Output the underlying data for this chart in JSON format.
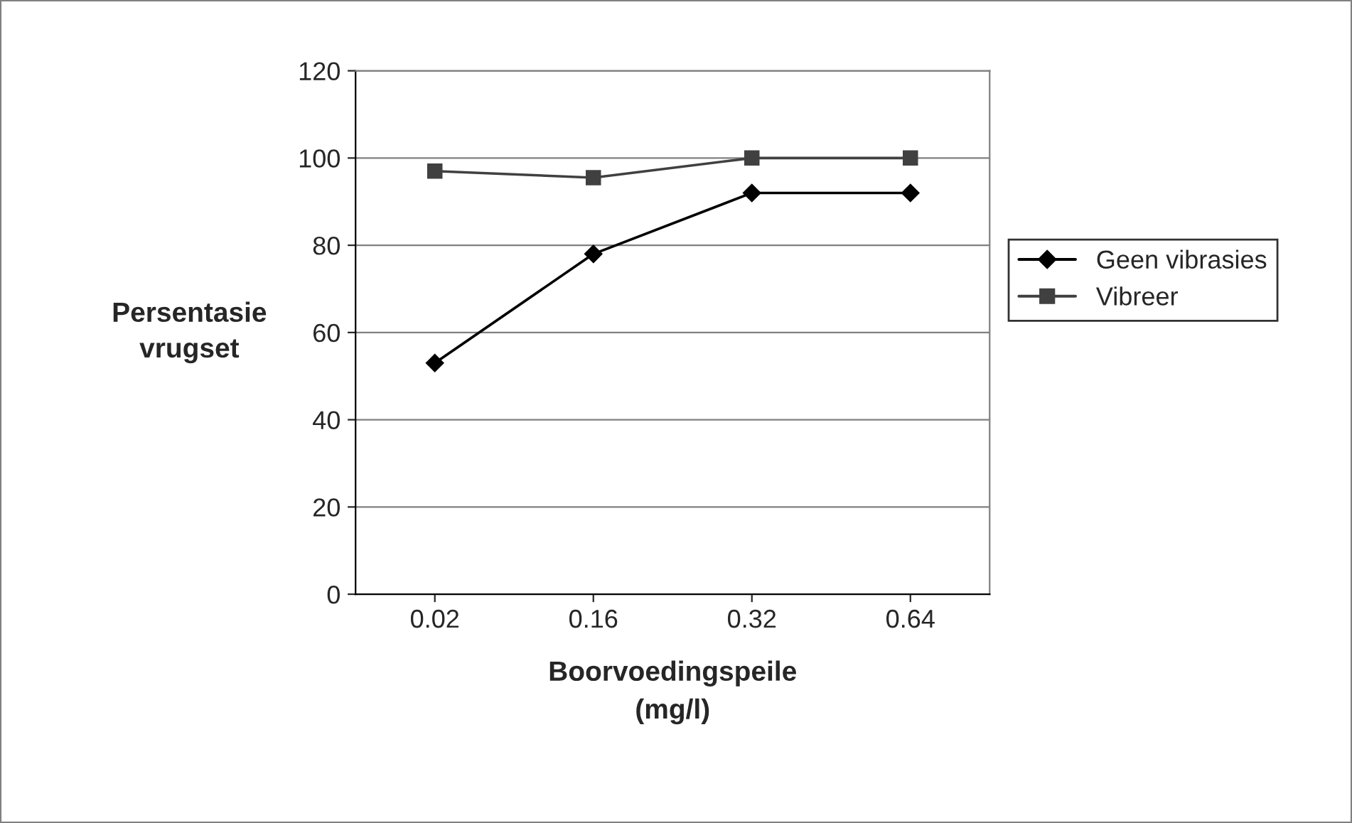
{
  "chart_data": {
    "type": "line",
    "xlabel": "Boorvoedingspeile\n(mg/l)",
    "ylabel": "Persentasie\nvrugset",
    "categories": [
      "0.02",
      "0.16",
      "0.32",
      "0.64"
    ],
    "series": [
      {
        "name": "Geen vibrasies",
        "color": "#000000",
        "marker": "diamond",
        "values": [
          53,
          78,
          92,
          92
        ]
      },
      {
        "name": "Vibreer",
        "color": "#404040",
        "marker": "square",
        "values": [
          97,
          95.5,
          100,
          100
        ]
      }
    ],
    "ylim": [
      0,
      120
    ],
    "yticks": [
      0,
      20,
      40,
      60,
      80,
      100,
      120
    ],
    "grid": "y",
    "legend": "right",
    "line_style": "solid"
  }
}
